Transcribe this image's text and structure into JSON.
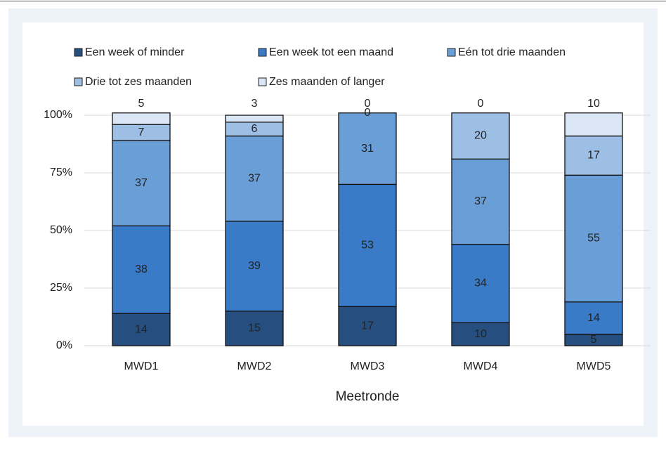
{
  "chart_data": {
    "type": "stacked_bar",
    "categories": [
      "MWD1",
      "MWD2",
      "MWD3",
      "MWD4",
      "MWD5"
    ],
    "xlabel": "Meetronde",
    "series": [
      {
        "name": "Een week of minder",
        "color": "#264f80",
        "values": [
          14,
          15,
          17,
          10,
          5
        ]
      },
      {
        "name": "Een week tot een maand",
        "color": "#3a7bc8",
        "values": [
          38,
          39,
          53,
          34,
          14
        ]
      },
      {
        "name": "Eén tot drie maanden",
        "color": "#6a9ed6",
        "values": [
          37,
          37,
          31,
          37,
          55
        ]
      },
      {
        "name": "Drie tot zes maanden",
        "color": "#9dbfe6",
        "values": [
          7,
          6,
          0,
          20,
          17
        ]
      },
      {
        "name": "Zes maanden of langer",
        "color": "#dae6f5",
        "values": [
          5,
          3,
          0,
          0,
          10
        ]
      }
    ],
    "ylim": [
      0,
      100
    ],
    "yticks": [
      {
        "value": 0,
        "label": "0%"
      },
      {
        "value": 25,
        "label": "25%"
      },
      {
        "value": 50,
        "label": "50%"
      },
      {
        "value": 75,
        "label": "75%"
      },
      {
        "value": 100,
        "label": "100%"
      }
    ],
    "grid": true
  }
}
